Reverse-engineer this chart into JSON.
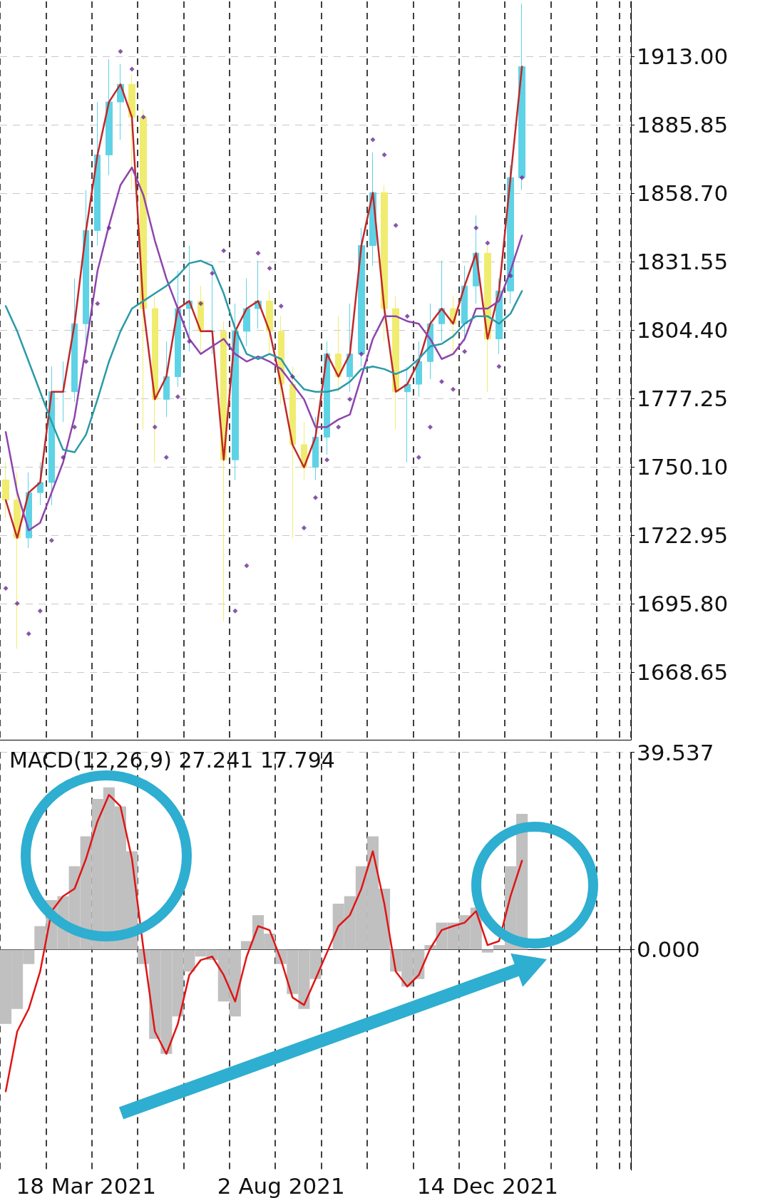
{
  "chart_data": [
    {
      "type": "candlestick",
      "categories": [
        null,
        null,
        null,
        null,
        null,
        null,
        null,
        null,
        null,
        null,
        null,
        null,
        null,
        null,
        null,
        null,
        null,
        null,
        null,
        null,
        null,
        null,
        null,
        null,
        null,
        null,
        null,
        null,
        null,
        null,
        null,
        null,
        null,
        null,
        null,
        null,
        null,
        null,
        null,
        null,
        null,
        null,
        null,
        null,
        null,
        null,
        null,
        null,
        null,
        null,
        null,
        null,
        null,
        null,
        null
      ],
      "tick_labels": "y",
      "ylim": [
        1641.9,
        1934.9
      ],
      "yticks": [
        1668.65,
        {
          "value": 1695.8,
          "label": "1695.80"
        },
        {
          "value": 1722.95,
          "label": "1722.95"
        },
        {
          "value": 1750.1,
          "label": "1750.10"
        },
        1777.25,
        {
          "value": 1804.4,
          "label": "1804.40"
        },
        1831.55,
        {
          "value": 1858.7,
          "label": "1858.70"
        },
        {
          "value": 1885.85,
          "label": "1885.85"
        },
        {
          "value": 1913,
          "label": "1913.00"
        }
      ],
      "grid": true,
      "series": [
        {
          "ohlc": [
            [
              1745,
              1752,
              1730,
              1737
            ],
            [
              1737,
              1748,
              1678,
              1722
            ],
            [
              1722,
              1748,
              1718,
              1740
            ],
            [
              1740,
              1752,
              1735,
              1744
            ],
            [
              1744,
              1790,
              1735,
              1780
            ],
            [
              1780,
              1792,
              1768,
              1780
            ],
            [
              1780,
              1825,
              1776,
              1807
            ],
            [
              1807,
              1860,
              1800,
              1844
            ],
            [
              1844,
              1895,
              1838,
              1874
            ],
            [
              1874,
              1912,
              1866,
              1895
            ],
            [
              1895,
              1910,
              1880,
              1902
            ],
            [
              1902,
              1906,
              1860,
              1889
            ],
            [
              1889,
              1892,
              1765,
              1813
            ],
            [
              1813,
              1818,
              1752,
              1777
            ],
            [
              1777,
              1800,
              1770,
              1786
            ],
            [
              1786,
              1828,
              1782,
              1813
            ],
            [
              1813,
              1838,
              1796,
              1816
            ],
            [
              1816,
              1822,
              1796,
              1804
            ],
            [
              1804,
              1830,
              1795,
              1804
            ],
            [
              1804,
              1808,
              1689,
              1753
            ],
            [
              1753,
              1815,
              1745,
              1804
            ],
            [
              1804,
              1825,
              1798,
              1813
            ],
            [
              1813,
              1832,
              1805,
              1816
            ],
            [
              1816,
              1820,
              1795,
              1804
            ],
            [
              1804,
              1810,
              1775,
              1783
            ],
            [
              1783,
              1790,
              1722,
              1759
            ],
            [
              1759,
              1768,
              1745,
              1750
            ],
            [
              1750,
              1770,
              1745,
              1762
            ],
            [
              1762,
              1800,
              1755,
              1795
            ],
            [
              1795,
              1810,
              1780,
              1786
            ],
            [
              1786,
              1815,
              1780,
              1795
            ],
            [
              1795,
              1845,
              1790,
              1838
            ],
            [
              1838,
              1875,
              1830,
              1859
            ],
            [
              1859,
              1862,
              1800,
              1813
            ],
            [
              1813,
              1818,
              1765,
              1780
            ],
            [
              1780,
              1790,
              1752,
              1783
            ],
            [
              1783,
              1800,
              1778,
              1792
            ],
            [
              1792,
              1815,
              1785,
              1807
            ],
            [
              1807,
              1832,
              1800,
              1813
            ],
            [
              1813,
              1818,
              1795,
              1807
            ],
            [
              1807,
              1830,
              1800,
              1822
            ],
            [
              1822,
              1850,
              1815,
              1835
            ],
            [
              1835,
              1838,
              1780,
              1801
            ],
            [
              1801,
              1825,
              1795,
              1820
            ],
            [
              1820,
              1870,
              1815,
              1865
            ],
            [
              1865,
              1934,
              1860,
              1909
            ],
            null,
            null,
            null,
            null,
            null,
            null,
            null,
            null,
            null
          ],
          "colors": [
            "#f0ec70",
            "#f0ec70",
            "#5fd3e6",
            "#5fd3e6",
            "#5fd3e6",
            "#5fd3e6",
            "#5fd3e6",
            "#5fd3e6",
            "#5fd3e6",
            "#5fd3e6",
            "#5fd3e6",
            "#f0ec70",
            "#f0ec70",
            "#f0ec70",
            "#5fd3e6",
            "#5fd3e6",
            "#5fd3e6",
            "#f0ec70",
            "#5fd3e6",
            "#f0ec70",
            "#5fd3e6",
            "#5fd3e6",
            "#5fd3e6",
            "#f0ec70",
            "#f0ec70",
            "#f0ec70",
            "#f0ec70",
            "#5fd3e6",
            "#5fd3e6",
            "#f0ec70",
            "#5fd3e6",
            "#5fd3e6",
            "#5fd3e6",
            "#f0ec70",
            "#f0ec70",
            "#5fd3e6",
            "#5fd3e6",
            "#5fd3e6",
            "#5fd3e6",
            "#f0ec70",
            "#5fd3e6",
            "#5fd3e6",
            "#f0ec70",
            "#5fd3e6",
            "#5fd3e6",
            "#5fd3e6",
            null,
            null,
            null,
            null,
            null,
            null,
            null,
            null,
            null
          ]
        },
        {
          "type": "line",
          "color": "#c0282a",
          "marker": "none",
          "values": [
            1737,
            1722,
            1740,
            1744,
            1780,
            1780,
            1807,
            1844,
            1874,
            1895,
            1902,
            1889,
            1813,
            1777,
            1786,
            1813,
            1816,
            1804,
            1804,
            1753,
            1804,
            1813,
            1816,
            1804,
            1783,
            1759,
            1750,
            1762,
            1795,
            1786,
            1795,
            1838,
            1859,
            1813,
            1780,
            1783,
            1792,
            1807,
            1813,
            1807,
            1822,
            1835,
            1801,
            1820,
            1865,
            1909,
            null,
            null,
            null,
            null,
            null,
            null,
            null,
            null,
            null
          ]
        },
        {
          "type": "line",
          "color": "#8e44ad",
          "marker": "none",
          "values": [
            1764,
            1740,
            1725,
            1728,
            1740,
            1752,
            1770,
            1798,
            1828,
            1846,
            1862,
            1869,
            1858,
            1840,
            1825,
            1813,
            1801,
            1795,
            1798,
            1801,
            1795,
            1792,
            1794,
            1792,
            1789,
            1783,
            1777,
            1766,
            1766,
            1769,
            1771,
            1786,
            1801,
            1810,
            1810,
            1808,
            1807,
            1801,
            1793,
            1795,
            1801,
            1813,
            1813,
            1816,
            1828,
            1842,
            null,
            null,
            null,
            null,
            null,
            null,
            null,
            null,
            null
          ]
        },
        {
          "type": "line",
          "color": "#2a9aa8",
          "marker": "none",
          "values": [
            1814,
            1804,
            1792,
            1780,
            1768,
            1757,
            1756,
            1763,
            1777,
            1792,
            1804,
            1813,
            1816,
            1819,
            1822,
            1826,
            1831,
            1832,
            1830,
            1819,
            1805,
            1795,
            1793,
            1795,
            1793,
            1786,
            1781,
            1780,
            1780,
            1781,
            1784,
            1789,
            1790,
            1789,
            1787,
            1789,
            1793,
            1798,
            1799,
            1802,
            1807,
            1810,
            1810,
            1807,
            1811,
            1820,
            null,
            null,
            null,
            null,
            null,
            null,
            null,
            null,
            null
          ]
        },
        {
          "type": "scatter",
          "color": "#6b2c91",
          "marker": "diamond",
          "values": [
            1702,
            1696,
            1684,
            1693,
            1721,
            1754,
            1766,
            1792,
            1815,
            1845,
            1915,
            1908,
            1889,
            1766,
            1754,
            1778,
            1800,
            1815,
            1827,
            1836,
            1693,
            1711,
            1835,
            1829,
            1814,
            1786,
            1726,
            1738,
            1753,
            1766,
            1777,
            1795,
            1880,
            1874,
            1846,
            1810,
            1754,
            1766,
            1784,
            1781,
            1796,
            1845,
            1839,
            1790,
            1826,
            1865,
            null,
            null,
            null,
            null,
            null,
            null,
            null,
            null,
            null
          ]
        }
      ]
    },
    {
      "type": "bar",
      "title": "MACD(12,26,9) 27.241 17.794",
      "categories": [
        null,
        null,
        null,
        null,
        null,
        null,
        null,
        "18 Mar 2021",
        null,
        null,
        null,
        null,
        null,
        null,
        null,
        null,
        null,
        null,
        null,
        null,
        null,
        null,
        null,
        null,
        "2 Aug 2021",
        null,
        null,
        null,
        null,
        null,
        null,
        null,
        null,
        null,
        null,
        null,
        null,
        null,
        null,
        null,
        null,
        null,
        "14 Dec 2021",
        null,
        null,
        null,
        null,
        null,
        null,
        null,
        null,
        null,
        null,
        null,
        null
      ],
      "ylim": [
        -44.2,
        39.537
      ],
      "yticks": [
        39.537,
        {
          "value": 0,
          "label": "0.000"
        }
      ],
      "grid": true,
      "series": [
        {
          "color": "#c0c0c0",
          "values": [
            -14.9,
            -11.9,
            -2.9,
            4.7,
            9.9,
            10.7,
            16.7,
            22.7,
            30.2,
            32.5,
            28.7,
            19.7,
            -2.9,
            -17.9,
            -20.9,
            -13.4,
            -4.4,
            -1.4,
            -2.1,
            -10.4,
            -13.4,
            1.7,
            6.9,
            3.2,
            -2.9,
            -8.9,
            -11.9,
            -5.9,
            null,
            9.2,
            10.7,
            16.7,
            22.7,
            12.2,
            -4.4,
            -7.4,
            -5.9,
            0.9,
            5.4,
            5.4,
            6.9,
            8.4,
            -0.6,
            0.9,
            16.7,
            27.2,
            null,
            null,
            null,
            null,
            null,
            null,
            null,
            null,
            null
          ]
        },
        {
          "type": "line",
          "color": "#e01515",
          "marker": "none",
          "values": [
            -28.4,
            -16.4,
            -11.9,
            -4.4,
            7.7,
            10.7,
            12.2,
            18.2,
            25.7,
            31,
            28.7,
            18.2,
            0.2,
            -16.4,
            -20.9,
            -14.9,
            -5.1,
            -2.1,
            -1.4,
            -5.1,
            -10.4,
            -1.4,
            4.7,
            3.9,
            -2.1,
            -9.6,
            -11.1,
            -5.9,
            -0.6,
            4.7,
            6.9,
            12.2,
            19.7,
            9.2,
            -4.4,
            -7.4,
            -5.1,
            0.2,
            3.9,
            4.7,
            5.4,
            7.7,
            0.9,
            1.7,
            10.7,
            17.8,
            null,
            null,
            null,
            null,
            null,
            null,
            null,
            null,
            null
          ]
        }
      ]
    }
  ]
}
